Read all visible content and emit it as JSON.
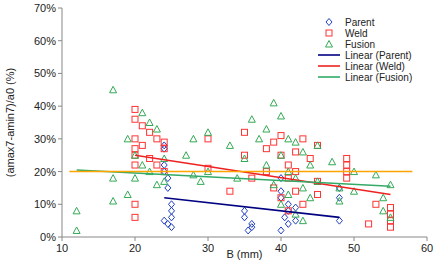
{
  "chart_data": {
    "type": "scatter",
    "x_label": "B (mm)",
    "y_label": "(amax7-amin7)/a0 (%)",
    "xlim": [
      10,
      60
    ],
    "xticks": [
      10,
      20,
      30,
      40,
      50,
      60
    ],
    "ylim": [
      0,
      70
    ],
    "yticks": [
      {
        "value": 0,
        "label": "0%"
      },
      {
        "value": 10,
        "label": "10%"
      },
      {
        "value": 20,
        "label": "20%"
      },
      {
        "value": 30,
        "label": "30%"
      },
      {
        "value": 40,
        "label": "40%"
      },
      {
        "value": 50,
        "label": "50%"
      },
      {
        "value": 60,
        "label": "60%"
      },
      {
        "value": 70,
        "label": "70%"
      }
    ],
    "grid": false,
    "legend": "upper right",
    "series": [
      {
        "name": "Parent",
        "color": "#2040c0",
        "marker": "diamond",
        "type": "scatter",
        "x": [
          24,
          24,
          24,
          24,
          24.5,
          24.5,
          25,
          25,
          25,
          24,
          24.5,
          25,
          35,
          35,
          36,
          36,
          35.5,
          40,
          40,
          40,
          41,
          41,
          40.5,
          41,
          40,
          42,
          42,
          48,
          48,
          48
        ],
        "values": [
          28,
          27,
          22,
          20,
          18,
          15,
          10,
          8,
          6,
          5,
          4,
          3,
          8,
          6,
          4,
          3,
          2,
          18,
          14,
          12,
          10,
          8,
          6,
          4,
          2,
          9,
          5,
          15,
          12,
          5
        ]
      },
      {
        "name": "Weld",
        "color": "#ff3333",
        "marker": "square",
        "type": "scatter",
        "x": [
          20,
          20,
          20,
          20,
          20,
          20,
          20,
          20,
          21,
          21,
          22,
          22,
          23,
          23,
          24,
          24,
          24,
          30,
          30,
          33,
          35,
          35,
          36,
          38,
          38,
          39,
          39,
          40,
          40,
          40,
          41,
          41,
          41,
          42,
          42,
          42,
          43,
          43,
          44,
          45,
          45,
          45,
          49,
          49,
          49,
          49,
          52,
          53,
          55,
          55,
          55,
          55
        ],
        "values": [
          39,
          36,
          30,
          27,
          25,
          22,
          10,
          6,
          34,
          28,
          32,
          24,
          30,
          22,
          29,
          27,
          20,
          30,
          21,
          14,
          32,
          25,
          18,
          27,
          20,
          29,
          15,
          31,
          25,
          12,
          22,
          18,
          8,
          26,
          20,
          14,
          30,
          10,
          24,
          28,
          17,
          13,
          24,
          22,
          20,
          18,
          4,
          10,
          9,
          7,
          5,
          3
        ]
      },
      {
        "name": "Fusion",
        "color": "#33aa55",
        "marker": "triangle",
        "type": "scatter",
        "x": [
          12,
          12,
          17,
          17,
          17,
          19,
          19,
          20,
          20,
          21,
          21,
          22,
          22,
          23,
          23,
          24,
          24,
          27,
          28,
          28,
          29,
          30,
          30,
          33,
          34,
          35,
          36,
          37,
          38,
          38,
          39,
          39,
          40,
          40,
          40,
          41,
          41,
          41,
          42,
          42,
          42,
          43,
          43,
          43,
          44,
          44,
          45,
          45,
          47,
          48,
          48,
          50,
          50,
          53,
          54,
          54,
          55,
          55
        ],
        "values": [
          2,
          8,
          45,
          18,
          11,
          30,
          13,
          25,
          18,
          38,
          22,
          35,
          20,
          33,
          16,
          24,
          17,
          25,
          19,
          30,
          17,
          32,
          20,
          28,
          18,
          24,
          36,
          30,
          22,
          33,
          41,
          16,
          37,
          25,
          10,
          30,
          20,
          13,
          29,
          18,
          7,
          26,
          15,
          5,
          22,
          12,
          28,
          17,
          23,
          15,
          11,
          20,
          14,
          19,
          12,
          8,
          16,
          6
        ]
      },
      {
        "name": "Linear (Parent)",
        "color": "#000080",
        "type": "line",
        "x": [
          24,
          48
        ],
        "values": [
          12,
          6
        ]
      },
      {
        "name": "Linear (Weld)",
        "color": "#ee2222",
        "type": "line",
        "x": [
          20,
          55
        ],
        "values": [
          25,
          13
        ]
      },
      {
        "name": "Linear (Fusion)",
        "color": "#33aa66",
        "type": "line",
        "x": [
          12,
          55
        ],
        "values": [
          20.5,
          15.5
        ]
      },
      {
        "color": "#ffa500",
        "type": "line",
        "x": [
          11,
          58
        ],
        "values": [
          20,
          20
        ]
      }
    ]
  }
}
